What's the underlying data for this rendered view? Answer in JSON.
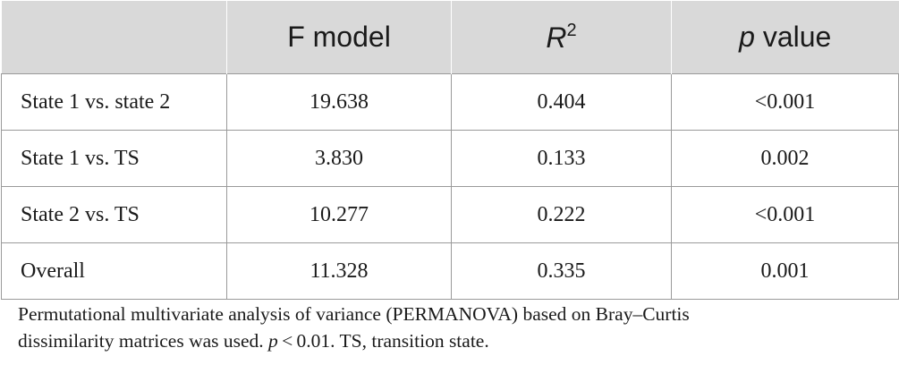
{
  "table": {
    "headers": {
      "col0": "",
      "col1": "F model",
      "col2_symbol": "R",
      "col2_sup": "2",
      "col3_italic": "p",
      "col3_rest": " value"
    },
    "rows": [
      {
        "label": "State 1 vs. state 2",
        "f_model": "19.638",
        "r2": "0.404",
        "p_value": "<0.001"
      },
      {
        "label": "State 1 vs. TS",
        "f_model": "3.830",
        "r2": "0.133",
        "p_value": "0.002"
      },
      {
        "label": "State 2 vs. TS",
        "f_model": "10.277",
        "r2": "0.222",
        "p_value": "<0.001"
      },
      {
        "label": "Overall",
        "f_model": "11.328",
        "r2": "0.335",
        "p_value": "0.001"
      }
    ]
  },
  "footnote": {
    "line1": "Permutational multivariate analysis of variance (PERMANOVA) based on Bray–Curtis",
    "line2_prefix": "dissimilarity matrices was used. ",
    "line2_p": "p",
    "line2_rest": " < 0.01. TS, transition state."
  },
  "colors": {
    "header_bg": "#d9d9d9",
    "grid_line": "#9a9a9a",
    "text": "#1a1a1a"
  }
}
